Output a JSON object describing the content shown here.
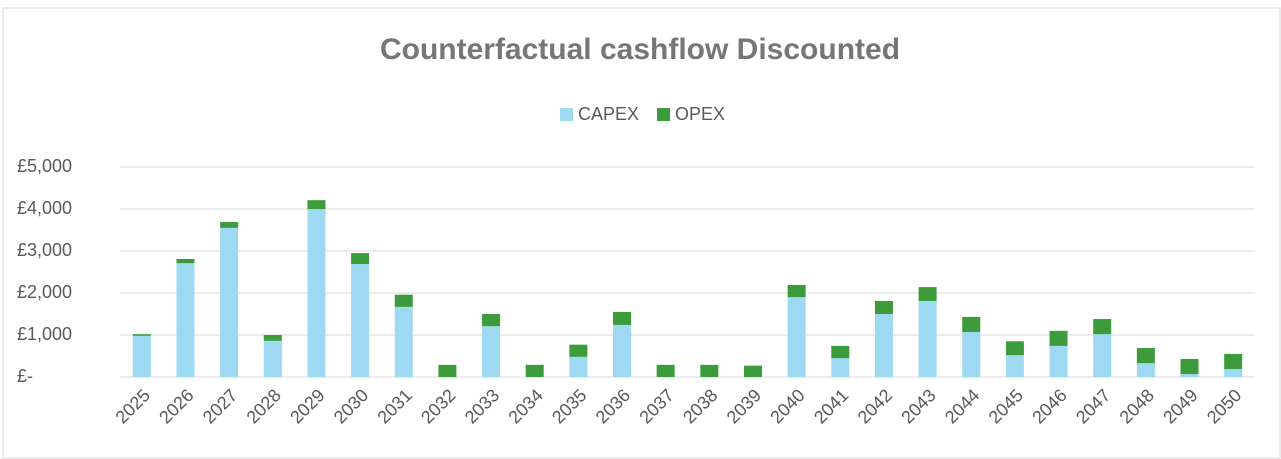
{
  "chart_data": {
    "type": "bar",
    "stacked": true,
    "title": "Counterfactual cashflow Discounted",
    "categories": [
      "2025",
      "2026",
      "2027",
      "2028",
      "2029",
      "2030",
      "2031",
      "2032",
      "2033",
      "2034",
      "2035",
      "2036",
      "2037",
      "2038",
      "2039",
      "2040",
      "2041",
      "2042",
      "2043",
      "2044",
      "2045",
      "2046",
      "2047",
      "2048",
      "2049",
      "2050"
    ],
    "series": [
      {
        "name": "CAPEX",
        "color": "#9dd9f3",
        "values": [
          980,
          2710,
          3550,
          860,
          4000,
          2690,
          1670,
          0,
          1210,
          0,
          480,
          1240,
          0,
          0,
          0,
          1900,
          450,
          1500,
          1810,
          1070,
          520,
          740,
          1020,
          330,
          70,
          190
        ]
      },
      {
        "name": "OPEX",
        "color": "#3c9c3c",
        "values": [
          40,
          100,
          140,
          140,
          210,
          260,
          290,
          290,
          290,
          290,
          290,
          310,
          290,
          290,
          270,
          290,
          290,
          310,
          330,
          360,
          330,
          360,
          360,
          360,
          360,
          360
        ]
      }
    ],
    "ylim": [
      0,
      5000
    ],
    "yticks": [
      {
        "value": 0,
        "label": "£-"
      },
      {
        "value": 1000,
        "label": "£1,000"
      },
      {
        "value": 2000,
        "label": "£2,000"
      },
      {
        "value": 3000,
        "label": "£3,000"
      },
      {
        "value": 4000,
        "label": "£4,000"
      },
      {
        "value": 5000,
        "label": "£5,000"
      }
    ],
    "grid": true,
    "legend": "top"
  }
}
